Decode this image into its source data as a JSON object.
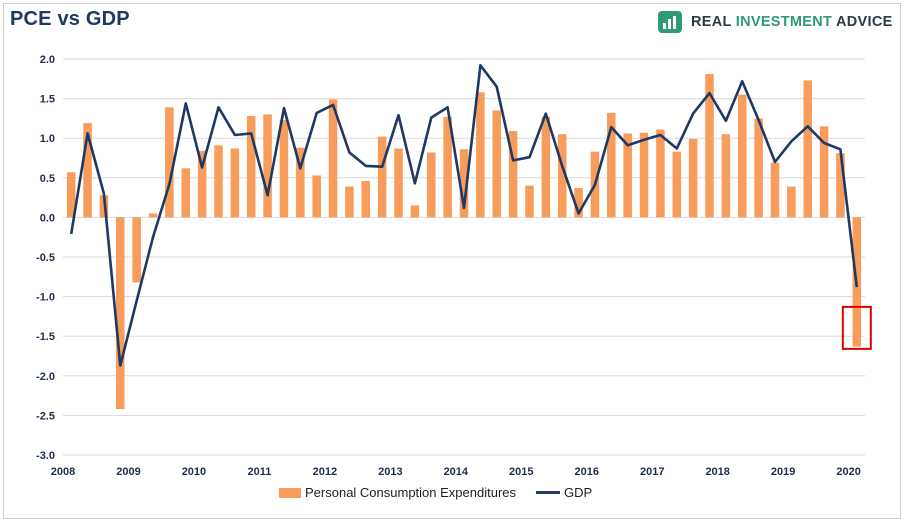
{
  "title": "PCE vs GDP",
  "logo": {
    "brand_part1": "REAL ",
    "brand_part2": "INVESTMENT",
    "brand_part3": " ADVICE",
    "icon": "chart-box-icon",
    "icon_color": "#2e9b74"
  },
  "colors": {
    "bar": "#f79c5a",
    "line": "#1f3864",
    "highlight": "#e00000",
    "grid": "#d9d9d9",
    "axis_text": "#1f2f4a"
  },
  "chart_data": {
    "type": "bar",
    "ylim": [
      -3.0,
      2.0
    ],
    "yticks": [
      "2.0",
      "1.5",
      "1.0",
      "0.5",
      "0.0",
      "-0.5",
      "-1.0",
      "-1.5",
      "-2.0",
      "-2.5",
      "-3.0"
    ],
    "ytick_values": [
      2.0,
      1.5,
      1.0,
      0.5,
      0.0,
      -0.5,
      -1.0,
      -1.5,
      -2.0,
      -2.5,
      -3.0
    ],
    "xticks": [
      "2008",
      "2009",
      "2010",
      "2011",
      "2012",
      "2013",
      "2014",
      "2015",
      "2016",
      "2017",
      "2018",
      "2019",
      "2020"
    ],
    "grid": true,
    "legend_position": "bottom",
    "series": [
      {
        "name": "Personal Consumption Expenditures",
        "type": "bar",
        "values": [
          0.57,
          1.19,
          0.28,
          -2.42,
          -0.82,
          0.05,
          1.39,
          0.62,
          0.84,
          0.91,
          0.87,
          1.28,
          1.3,
          1.23,
          0.88,
          0.53,
          1.49,
          0.39,
          0.46,
          1.02,
          0.87,
          0.15,
          0.82,
          1.27,
          0.86,
          1.58,
          1.35,
          1.09,
          0.4,
          1.27,
          1.05,
          0.37,
          0.83,
          1.32,
          1.06,
          1.07,
          1.11,
          0.83,
          0.99,
          1.81,
          1.05,
          1.55,
          1.25,
          0.69,
          0.39,
          1.73,
          1.15,
          0.81,
          -1.63
        ]
      },
      {
        "name": "GDP",
        "type": "line",
        "values": [
          -0.21,
          1.06,
          0.3,
          -1.87,
          -1.05,
          -0.25,
          0.42,
          1.44,
          0.63,
          1.39,
          1.04,
          1.06,
          0.28,
          1.38,
          0.62,
          1.32,
          1.42,
          0.82,
          0.65,
          0.64,
          1.29,
          0.43,
          1.26,
          1.39,
          0.12,
          1.92,
          1.65,
          0.72,
          0.76,
          1.31,
          0.65,
          0.05,
          0.41,
          1.14,
          0.91,
          0.98,
          1.04,
          0.87,
          1.31,
          1.57,
          1.22,
          1.72,
          1.23,
          0.7,
          0.96,
          1.15,
          0.94,
          0.86,
          -0.88
        ]
      }
    ],
    "highlight_index": 48
  }
}
